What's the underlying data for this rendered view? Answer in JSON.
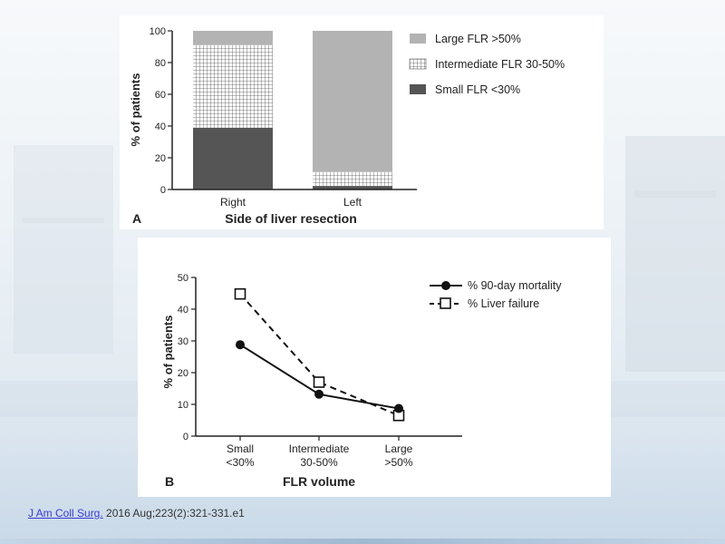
{
  "citation": {
    "journal": "J Am Coll Surg.",
    "details": "2016 Aug;223(2):321-331.e1"
  },
  "chart_data": [
    {
      "panel_label": "A",
      "type": "bar",
      "stacked": true,
      "categories": [
        "Right",
        "Left"
      ],
      "xlabel": "Side of liver resection",
      "ylabel": "% of patients",
      "ylim": [
        0,
        100
      ],
      "yticks": [
        0,
        20,
        40,
        60,
        80,
        100
      ],
      "series": [
        {
          "name": "Small FLR <30%",
          "values": [
            39,
            2
          ],
          "color": "#555555",
          "pattern": "solid"
        },
        {
          "name": "Intermediate FLR 30-50%",
          "values": [
            52,
            9
          ],
          "color": "#ffffff",
          "pattern": "grid"
        },
        {
          "name": "Large FLR >50%",
          "values": [
            9,
            89
          ],
          "color": "#b3b3b3",
          "pattern": "solid"
        }
      ],
      "legend_order": [
        "Large FLR >50%",
        "Intermediate FLR 30-50%",
        "Small FLR <30%"
      ],
      "legend_position": "right"
    },
    {
      "panel_label": "B",
      "type": "line",
      "categories": [
        "Small\n<30%",
        "Intermediate\n30-50%",
        "Large\n>50%"
      ],
      "xlabel": "FLR volume",
      "ylabel": "% of patients",
      "ylim": [
        0,
        50
      ],
      "yticks": [
        0,
        10,
        20,
        30,
        40,
        50
      ],
      "series": [
        {
          "name": "% 90-day mortality",
          "values": [
            28.8,
            13.2,
            8.7
          ],
          "marker": "filled-circle",
          "line": "solid"
        },
        {
          "name": "% Liver failure",
          "values": [
            44.8,
            17.0,
            6.5
          ],
          "marker": "open-square",
          "line": "dashed"
        }
      ],
      "legend_position": "top-right"
    }
  ]
}
